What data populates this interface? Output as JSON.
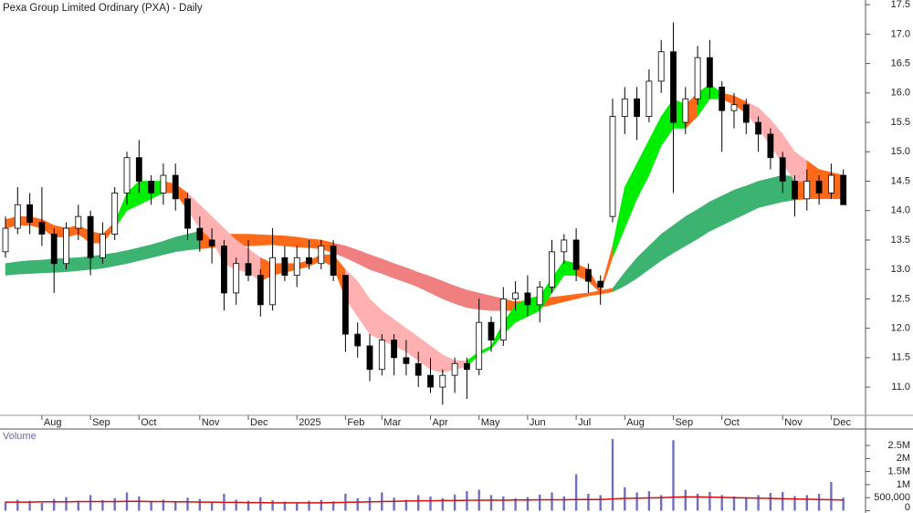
{
  "chart_data": [
    {
      "type": "candlestick",
      "title": "Pexa Group Limited Ordinary (PXA) - Daily",
      "categories": [
        null,
        null,
        null,
        "Aug",
        null,
        null,
        null,
        "Sep",
        null,
        null,
        null,
        "Oct",
        null,
        null,
        null,
        null,
        "Nov",
        null,
        null,
        null,
        "Dec",
        null,
        null,
        null,
        "2025",
        null,
        null,
        null,
        "Feb",
        null,
        null,
        "Mar",
        null,
        null,
        null,
        "Apr",
        null,
        null,
        null,
        "May",
        null,
        null,
        null,
        "Jun",
        null,
        null,
        null,
        "Jul",
        null,
        null,
        null,
        "Aug",
        null,
        null,
        null,
        "Sep",
        null,
        null,
        null,
        "Oct",
        null,
        null,
        null,
        null,
        "Nov",
        null,
        null,
        null,
        "Dec",
        null
      ],
      "open": [
        13.3,
        13.7,
        14.1,
        13.8,
        13.6,
        13.1,
        13.7,
        13.9,
        13.2,
        13.6,
        14.3,
        14.9,
        14.5,
        14.3,
        14.6,
        14.2,
        13.7,
        13.5,
        13.4,
        12.6,
        13.1,
        12.9,
        12.4,
        13.2,
        12.9,
        13.2,
        13.1,
        13.4,
        12.9,
        11.9,
        11.7,
        11.3,
        11.8,
        11.5,
        11.4,
        11.2,
        11.0,
        11.2,
        11.4,
        11.3,
        12.1,
        11.8,
        12.5,
        12.6,
        12.4,
        12.7,
        13.3,
        13.5,
        13.0,
        12.8,
        13.9,
        15.6,
        15.9,
        15.6,
        16.2,
        16.7,
        15.5,
        15.9,
        16.6,
        16.1,
        15.7,
        15.8,
        15.5,
        15.3,
        14.9,
        14.5,
        14.2,
        14.5,
        14.3,
        14.6
      ],
      "high": [
        13.9,
        14.4,
        14.3,
        14.4,
        13.7,
        13.8,
        14.1,
        14.0,
        13.8,
        14.4,
        15.0,
        15.2,
        14.6,
        14.8,
        14.8,
        14.3,
        13.9,
        13.7,
        13.5,
        13.2,
        13.5,
        13.0,
        13.7,
        13.4,
        13.4,
        13.5,
        13.5,
        13.5,
        12.9,
        12.1,
        11.9,
        11.9,
        11.9,
        11.8,
        11.6,
        11.5,
        11.3,
        11.5,
        11.5,
        12.5,
        12.2,
        12.7,
        12.8,
        12.9,
        12.8,
        13.5,
        13.6,
        13.7,
        13.1,
        12.9,
        15.9,
        16.1,
        16.1,
        16.4,
        16.9,
        17.2,
        16.1,
        16.8,
        16.9,
        16.2,
        16.0,
        15.9,
        15.6,
        15.4,
        15.0,
        14.6,
        14.7,
        14.6,
        14.8,
        14.7
      ],
      "low": [
        13.2,
        13.6,
        13.6,
        13.4,
        12.6,
        13.0,
        13.5,
        12.9,
        13.1,
        13.5,
        14.1,
        14.3,
        14.1,
        14.1,
        14.0,
        13.5,
        13.3,
        13.1,
        12.3,
        12.4,
        12.8,
        12.2,
        12.3,
        12.8,
        12.7,
        13.0,
        13.0,
        12.8,
        11.6,
        11.5,
        11.1,
        11.2,
        11.2,
        11.2,
        11.0,
        10.9,
        10.7,
        10.9,
        10.8,
        11.2,
        11.6,
        11.7,
        12.3,
        12.2,
        12.1,
        12.6,
        13.1,
        12.8,
        12.6,
        12.4,
        13.8,
        15.3,
        15.2,
        15.5,
        16.0,
        14.3,
        15.3,
        15.8,
        15.9,
        15.0,
        15.4,
        15.3,
        15.0,
        14.7,
        14.3,
        13.9,
        14.0,
        14.1,
        14.2,
        14.1
      ],
      "close": [
        13.7,
        14.1,
        13.8,
        13.6,
        13.1,
        13.7,
        13.9,
        13.2,
        13.6,
        14.3,
        14.9,
        14.5,
        14.3,
        14.6,
        14.2,
        13.7,
        13.5,
        13.4,
        12.6,
        13.1,
        12.9,
        12.4,
        13.2,
        12.9,
        13.2,
        13.1,
        13.4,
        12.9,
        11.9,
        11.7,
        11.3,
        11.8,
        11.5,
        11.4,
        11.2,
        11.0,
        11.2,
        11.4,
        11.3,
        12.1,
        11.8,
        12.5,
        12.6,
        12.4,
        12.7,
        13.3,
        13.5,
        13.0,
        12.8,
        12.7,
        15.6,
        15.9,
        15.6,
        16.2,
        16.7,
        15.5,
        15.9,
        16.6,
        16.1,
        15.7,
        15.8,
        15.5,
        15.3,
        14.9,
        14.5,
        14.2,
        14.5,
        14.3,
        14.6,
        14.1
      ],
      "bands": [
        {
          "lower": [
            12.9,
            12.92,
            12.93,
            12.94,
            12.95,
            12.96,
            12.98,
            13.0,
            13.02,
            13.06,
            13.1,
            13.15,
            13.2,
            13.25,
            13.3,
            13.33,
            13.35,
            13.37,
            13.38,
            13.39,
            13.4,
            13.41,
            13.42,
            13.4,
            13.38,
            13.37,
            13.35,
            13.28,
            13.2,
            13.1,
            13.0,
            12.93,
            12.85,
            12.78,
            12.7,
            12.6,
            12.5,
            12.42,
            12.35,
            12.32,
            12.3,
            12.3,
            12.3,
            12.32,
            12.35,
            12.4,
            12.45,
            12.5,
            12.55,
            12.58,
            12.62,
            12.72,
            12.85,
            13.0,
            13.15,
            13.28,
            13.4,
            13.52,
            13.65,
            13.75,
            13.85,
            13.95,
            14.05,
            14.1,
            14.15,
            14.18,
            14.2,
            14.2,
            14.2,
            14.2
          ],
          "upper": [
            13.1,
            13.13,
            13.15,
            13.16,
            13.18,
            13.19,
            13.2,
            13.22,
            13.25,
            13.28,
            13.32,
            13.37,
            13.42,
            13.48,
            13.55,
            13.6,
            13.65,
            13.63,
            13.6,
            13.6,
            13.6,
            13.59,
            13.58,
            13.57,
            13.55,
            13.52,
            13.5,
            13.45,
            13.4,
            13.33,
            13.25,
            13.18,
            13.1,
            13.03,
            12.95,
            12.88,
            12.8,
            12.72,
            12.65,
            12.6,
            12.55,
            12.5,
            12.45,
            12.47,
            12.5,
            12.53,
            12.55,
            12.58,
            12.6,
            12.64,
            12.68,
            12.95,
            13.2,
            13.4,
            13.6,
            13.75,
            13.9,
            14.02,
            14.15,
            14.25,
            14.35,
            14.42,
            14.5,
            14.55,
            14.6,
            14.58,
            14.55,
            14.52,
            14.5,
            14.48
          ],
          "segments": [
            {
              "from": 0,
              "color": "#3cb371"
            },
            {
              "from": 16,
              "color": "#ff6a1a"
            },
            {
              "from": 27,
              "color": "#f08080"
            },
            {
              "from": 41,
              "color": "#ff6a1a"
            },
            {
              "from": 50,
              "color": "#3cb371"
            },
            {
              "from": 65,
              "color": "#ff6a1a"
            }
          ]
        },
        {
          "lower": [
            13.7,
            13.75,
            13.75,
            13.7,
            13.55,
            13.55,
            13.6,
            13.45,
            13.45,
            13.7,
            14.0,
            14.1,
            14.2,
            14.3,
            14.3,
            14.0,
            13.7,
            13.5,
            13.1,
            13.0,
            12.95,
            12.8,
            12.9,
            12.95,
            13.0,
            13.05,
            13.15,
            13.05,
            12.5,
            12.2,
            11.9,
            11.8,
            11.7,
            11.6,
            11.45,
            11.3,
            11.25,
            11.3,
            11.35,
            11.55,
            11.65,
            11.9,
            12.1,
            12.2,
            12.3,
            12.6,
            12.9,
            12.9,
            12.8,
            12.6,
            13.2,
            13.7,
            14.2,
            14.6,
            15.1,
            15.4,
            15.4,
            15.6,
            15.9,
            15.9,
            15.8,
            15.65,
            15.4,
            15.1,
            14.8,
            14.5,
            14.5,
            14.45,
            14.5,
            14.45
          ],
          "upper": [
            13.85,
            13.9,
            13.9,
            13.85,
            13.75,
            13.7,
            13.75,
            13.65,
            13.6,
            13.8,
            14.3,
            14.5,
            14.5,
            14.5,
            14.45,
            14.3,
            14.1,
            13.9,
            13.7,
            13.5,
            13.35,
            13.2,
            13.1,
            13.1,
            13.1,
            13.15,
            13.25,
            13.25,
            13.0,
            12.8,
            12.5,
            12.3,
            12.15,
            12.0,
            11.85,
            11.7,
            11.55,
            11.45,
            11.45,
            11.6,
            11.7,
            12.1,
            12.4,
            12.5,
            12.55,
            12.85,
            13.15,
            13.1,
            13.0,
            12.65,
            13.4,
            14.4,
            14.8,
            15.2,
            15.6,
            15.9,
            15.8,
            16.0,
            16.15,
            16.0,
            15.95,
            15.85,
            15.75,
            15.55,
            15.3,
            15.0,
            14.85,
            14.7,
            14.65,
            14.6
          ],
          "segments": [
            {
              "from": 0,
              "color": "#ff6a1a"
            },
            {
              "from": 9,
              "color": "#00ee00"
            },
            {
              "from": 13,
              "color": "#ff6a1a"
            },
            {
              "from": 15,
              "color": "#ffb0b0"
            },
            {
              "from": 21,
              "color": "#ff6a1a"
            },
            {
              "from": 28,
              "color": "#ffb0b0"
            },
            {
              "from": 38,
              "color": "#00ee00"
            },
            {
              "from": 47,
              "color": "#ff6a1a"
            },
            {
              "from": 50,
              "color": "#00ee00"
            },
            {
              "from": 56,
              "color": "#ff6a1a"
            },
            {
              "from": 57,
              "color": "#00ee00"
            },
            {
              "from": 59,
              "color": "#ff6a1a"
            },
            {
              "from": 61,
              "color": "#ffb0b0"
            },
            {
              "from": 66,
              "color": "#ff6a1a"
            }
          ]
        }
      ],
      "ylim": [
        10.52,
        17.58
      ],
      "yticks": [
        {
          "value": 11,
          "label": "11.0"
        },
        11.5,
        {
          "value": 12,
          "label": "12.0"
        },
        12.5,
        {
          "value": 13,
          "label": "13.0"
        },
        13.5,
        {
          "value": 14,
          "label": "14.0"
        },
        14.5,
        {
          "value": 15,
          "label": "15.0"
        },
        15.5,
        {
          "value": 16,
          "label": "16.0"
        },
        16.5,
        {
          "value": 17,
          "label": "17.0"
        },
        17.5
      ]
    },
    {
      "type": "bar",
      "title": "Volume",
      "color": "#7070c0",
      "values": [
        350000,
        420000,
        380000,
        300000,
        450000,
        520000,
        380000,
        600000,
        410000,
        480000,
        700000,
        550000,
        380000,
        420000,
        360000,
        500000,
        450000,
        340000,
        650000,
        420000,
        380000,
        520000,
        400000,
        350000,
        300000,
        380000,
        420000,
        360000,
        650000,
        480000,
        520000,
        700000,
        500000,
        420000,
        600000,
        550000,
        480000,
        620000,
        750000,
        800000,
        600000,
        550000,
        480000,
        520000,
        620000,
        700000,
        550000,
        1400000,
        650000,
        600000,
        2750000,
        900000,
        700000,
        750000,
        600000,
        2700000,
        800000,
        650000,
        720000,
        600000,
        550000,
        520000,
        600000,
        680000,
        720000,
        560000,
        600000,
        650000,
        1100000,
        500000
      ],
      "average": {
        "color": "#d01010",
        "values": [
          330000,
          330000,
          330000,
          340000,
          340000,
          340000,
          350000,
          350000,
          350000,
          350000,
          360000,
          360000,
          350000,
          350000,
          340000,
          340000,
          330000,
          330000,
          320000,
          320000,
          310000,
          310000,
          300000,
          300000,
          300000,
          300000,
          300000,
          310000,
          320000,
          330000,
          340000,
          350000,
          360000,
          370000,
          380000,
          380000,
          390000,
          390000,
          400000,
          400000,
          400000,
          400000,
          410000,
          410000,
          420000,
          420000,
          420000,
          430000,
          430000,
          430000,
          450000,
          470000,
          480000,
          490000,
          500000,
          520000,
          530000,
          530000,
          520000,
          510000,
          500000,
          490000,
          480000,
          470000,
          460000,
          450000,
          440000,
          430000,
          420000,
          410000
        ]
      },
      "ylim": [
        0,
        3130000
      ],
      "yticks": [
        0,
        {
          "value": 500000,
          "label": "500,000"
        },
        {
          "value": 1000000,
          "label": "1M"
        },
        {
          "value": 1500000,
          "label": "1.5M"
        },
        {
          "value": 2000000,
          "label": "2M"
        },
        {
          "value": 2500000,
          "label": "2.5M"
        }
      ]
    }
  ]
}
